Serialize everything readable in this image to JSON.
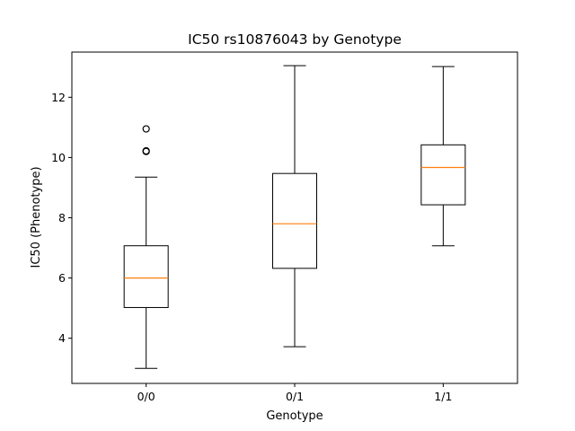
{
  "chart_data": {
    "type": "boxplot",
    "title": "IC50 rs10876043 by Genotype",
    "xlabel": "Genotype",
    "ylabel": "IC50 (Phenotype)",
    "categories": [
      "0/0",
      "0/1",
      "1/1"
    ],
    "ylim": [
      2.5,
      13.5
    ],
    "yticks": [
      4,
      6,
      8,
      10,
      12
    ],
    "ytick_labels": [
      "4",
      "6",
      "8",
      "10",
      "12"
    ],
    "grid": false,
    "boxes": [
      {
        "category": "0/0",
        "whisker_low": 3.0,
        "q1": 5.02,
        "median": 6.0,
        "q3": 7.07,
        "whisker_high": 9.35,
        "outliers": [
          10.2,
          10.22,
          10.95
        ]
      },
      {
        "category": "0/1",
        "whisker_low": 3.72,
        "q1": 6.32,
        "median": 7.8,
        "q3": 9.47,
        "whisker_high": 13.05
      },
      {
        "category": "1/1",
        "whisker_low": 7.07,
        "q1": 8.43,
        "median": 9.67,
        "q3": 10.42,
        "whisker_high": 13.02
      }
    ],
    "colors": {
      "box": "#000000",
      "median": "#ff7f0e",
      "outlier": "#000000",
      "axes": "#000000"
    }
  }
}
